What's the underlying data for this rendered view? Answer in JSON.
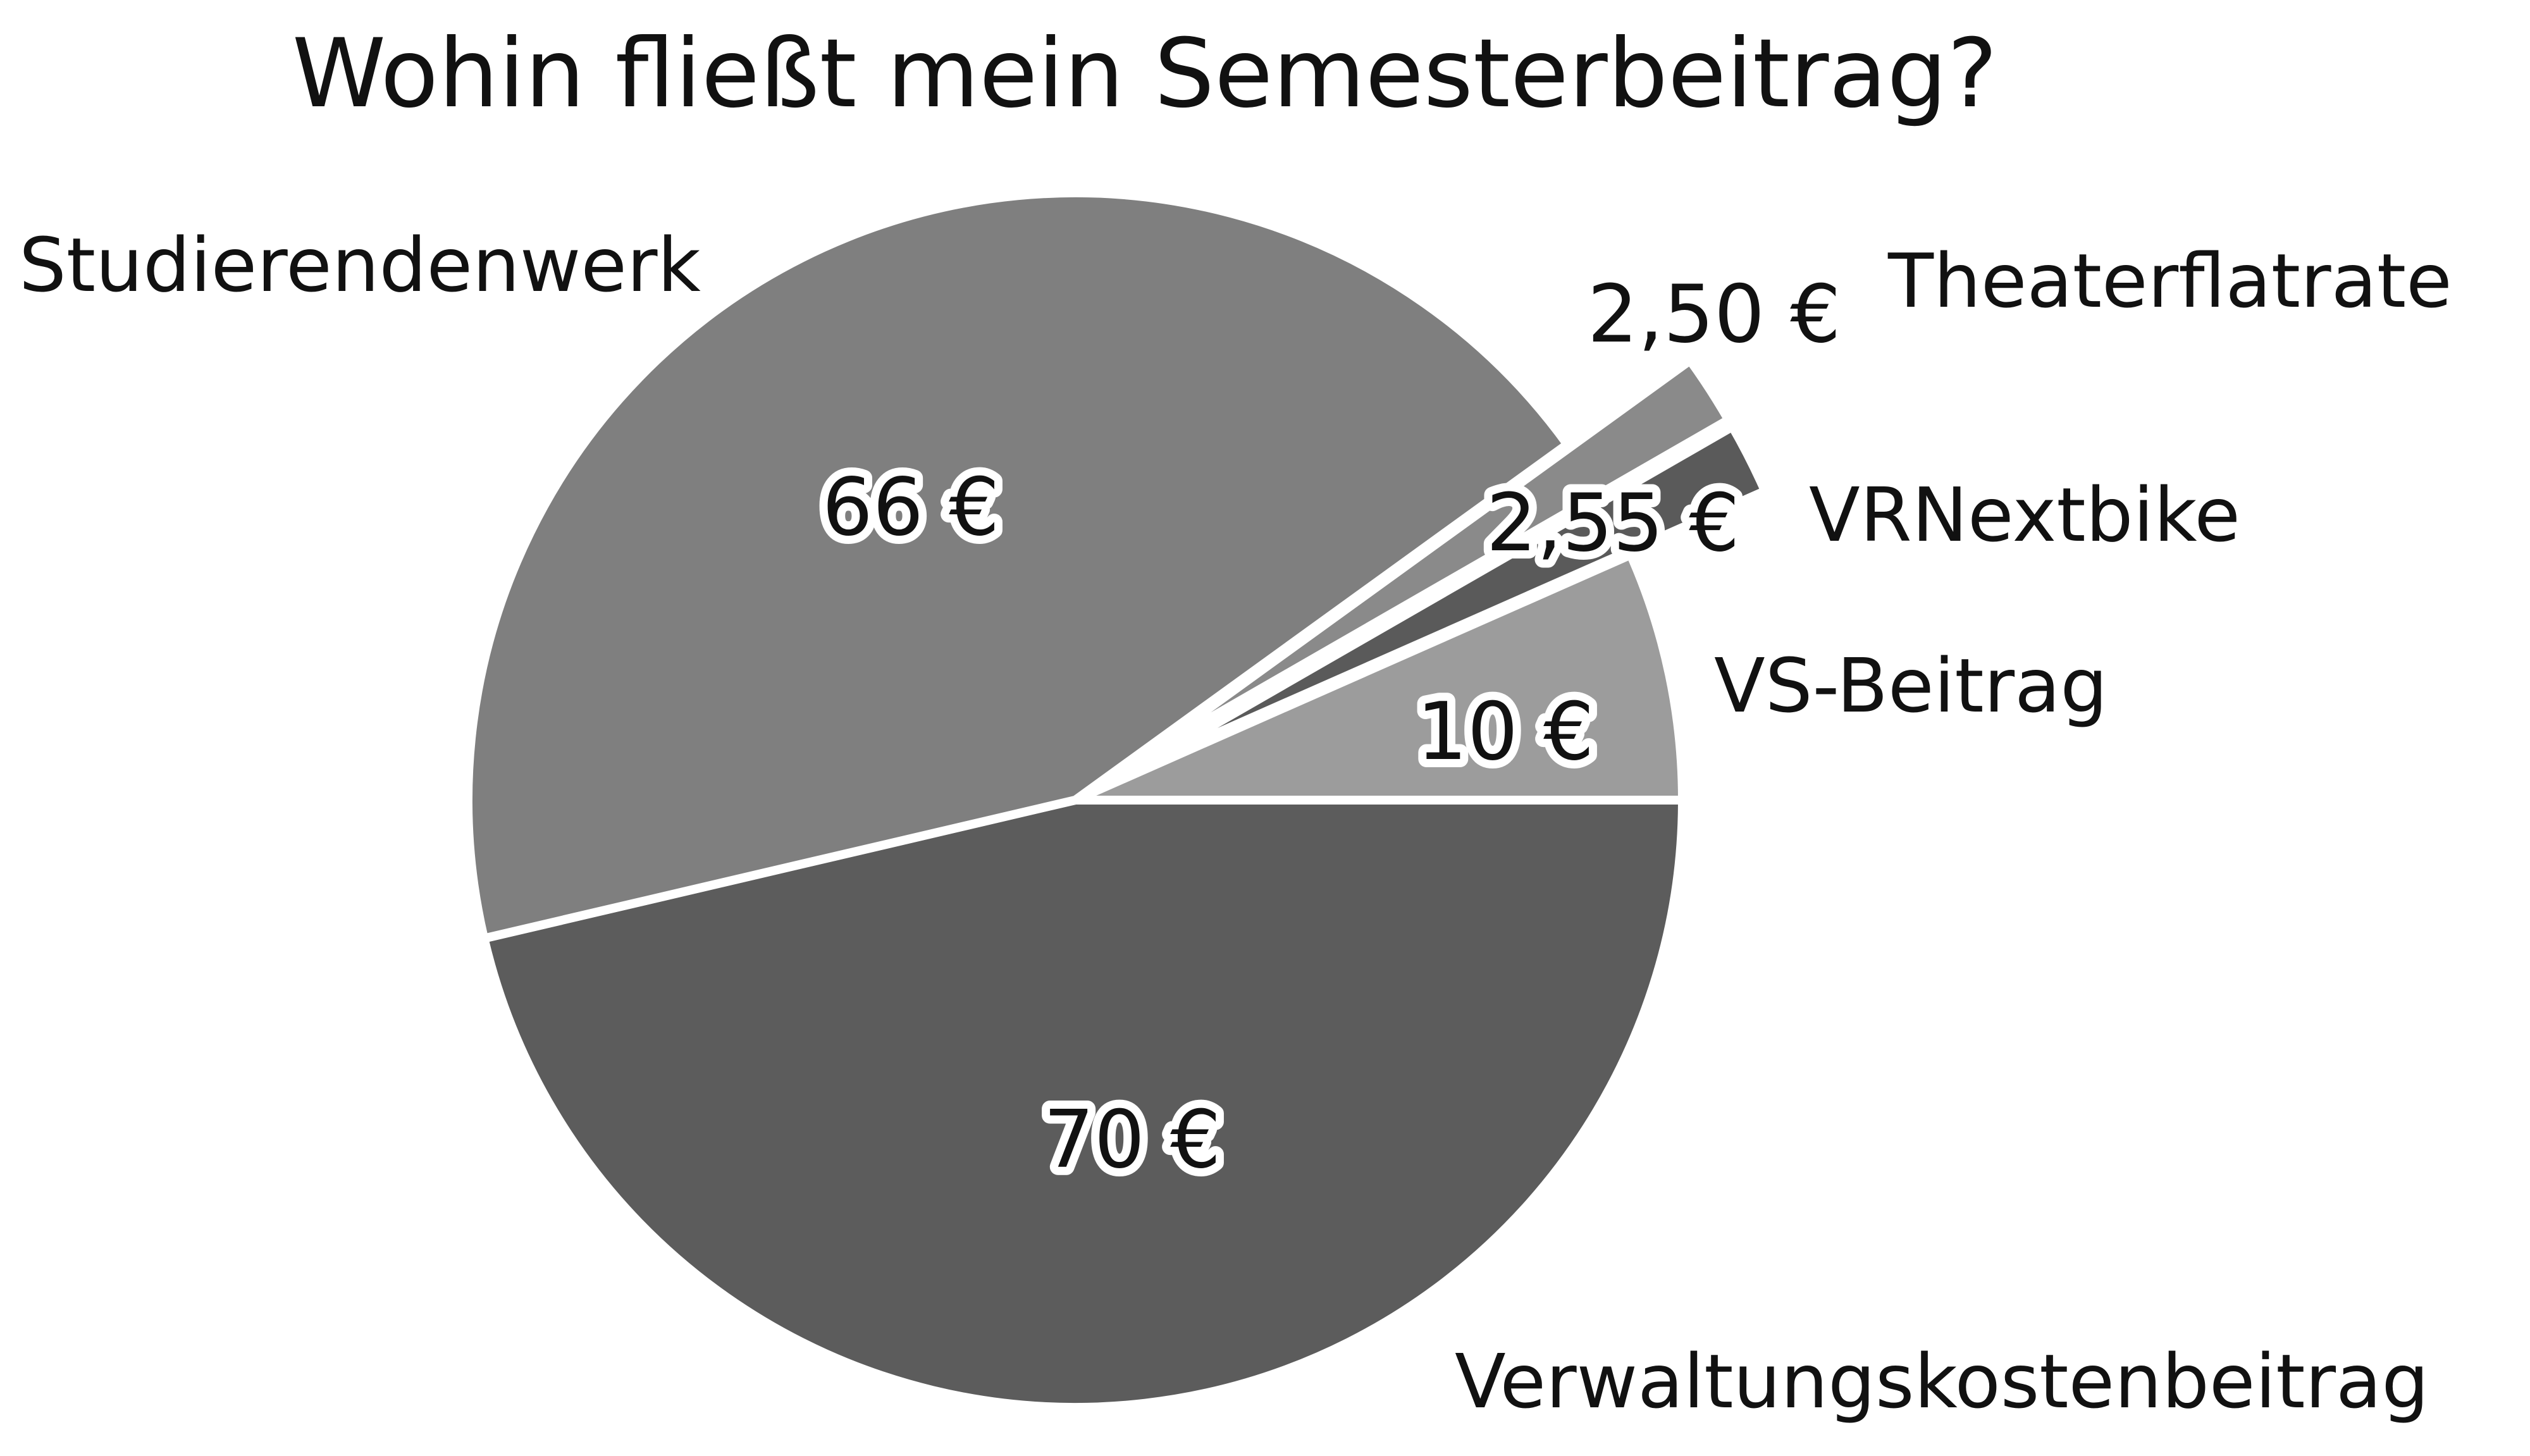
{
  "chart_data": {
    "type": "pie",
    "title": "Wohin fließt mein Semesterbeitrag?",
    "slices": [
      {
        "label": "Verwaltungskostenbeitrag",
        "value": 70,
        "value_label": "70 €",
        "color": "#5c5c5c",
        "exploded": false
      },
      {
        "label": "Studierendenwerk",
        "value": 66,
        "value_label": "66 €",
        "color": "#7f7f7f",
        "exploded": false
      },
      {
        "label": "Theaterflatrate",
        "value": 2.5,
        "value_label": "2,50 €",
        "color": "#8a8a8a",
        "exploded": true
      },
      {
        "label": "VRNextbike",
        "value": 2.55,
        "value_label": "2,55 €",
        "color": "#5a5a5a",
        "exploded": true
      },
      {
        "label": "VS-Beitrag",
        "value": 10,
        "value_label": "10 €",
        "color": "#9c9c9c",
        "exploded": false
      }
    ],
    "start_angle_deg": 0,
    "direction": "clockwise",
    "legend": "none",
    "labels": "outside-names-inside-values"
  }
}
